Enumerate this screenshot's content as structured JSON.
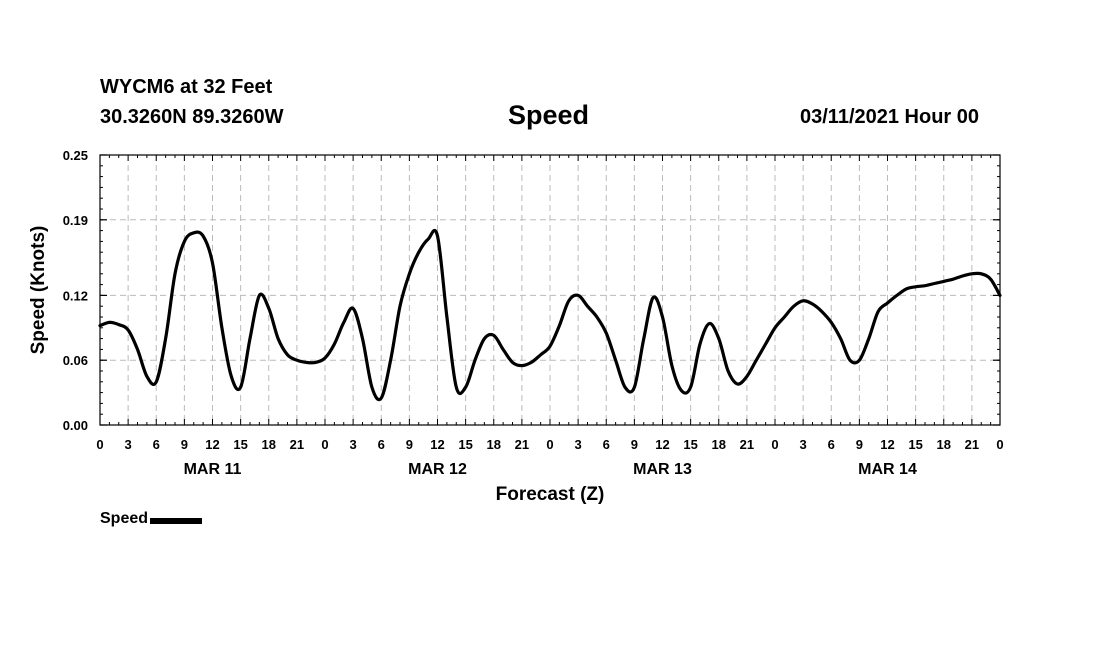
{
  "header": {
    "station": "WYCM6 at 32 Feet",
    "coords": "30.3260N 89.3260W",
    "title": "Speed",
    "issued": "03/11/2021 Hour 00"
  },
  "legend": {
    "label": "Speed"
  },
  "chart_data": {
    "type": "line",
    "title": "Speed",
    "xlabel": "Forecast (Z)",
    "ylabel": "Speed (Knots)",
    "xlim": [
      0,
      96
    ],
    "ylim": [
      0,
      0.25
    ],
    "grid": true,
    "yticks": [
      0,
      0.06,
      0.12,
      0.19,
      0.25
    ],
    "ytick_labels": [
      "0.00",
      "0.06",
      "0.12",
      "0.19",
      "0.25"
    ],
    "xticks": [
      0,
      3,
      6,
      9,
      12,
      15,
      18,
      21,
      24,
      27,
      30,
      33,
      36,
      39,
      42,
      45,
      48,
      51,
      54,
      57,
      60,
      63,
      66,
      69,
      72,
      75,
      78,
      81,
      84,
      87,
      90,
      93,
      96
    ],
    "xtick_labels": [
      "0",
      "3",
      "6",
      "9",
      "12",
      "15",
      "18",
      "21",
      "0",
      "3",
      "6",
      "9",
      "12",
      "15",
      "18",
      "21",
      "0",
      "3",
      "6",
      "9",
      "12",
      "15",
      "18",
      "21",
      "0",
      "3",
      "6",
      "9",
      "12",
      "15",
      "18",
      "21",
      "0"
    ],
    "day_labels": [
      {
        "label": "MAR 11",
        "x": 12
      },
      {
        "label": "MAR 12",
        "x": 36
      },
      {
        "label": "MAR 13",
        "x": 60
      },
      {
        "label": "MAR 14",
        "x": 84
      }
    ],
    "series": [
      {
        "name": "Speed",
        "color": "#000000",
        "x": [
          0,
          1,
          2,
          3,
          4,
          5,
          6,
          7,
          8,
          9,
          10,
          11,
          12,
          13,
          14,
          15,
          16,
          17,
          18,
          19,
          20,
          21,
          22,
          23,
          24,
          25,
          26,
          27,
          28,
          29,
          30,
          31,
          32,
          33,
          34,
          35,
          36,
          37,
          38,
          39,
          40,
          41,
          42,
          43,
          44,
          45,
          46,
          47,
          48,
          49,
          50,
          51,
          52,
          53,
          54,
          55,
          56,
          57,
          58,
          59,
          60,
          61,
          62,
          63,
          64,
          65,
          66,
          67,
          68,
          69,
          70,
          71,
          72,
          73,
          74,
          75,
          76,
          77,
          78,
          79,
          80,
          81,
          82,
          83,
          84,
          85,
          86,
          87,
          88,
          89,
          90,
          91,
          92,
          93,
          94,
          95,
          96
        ],
        "y": [
          0.092,
          0.095,
          0.093,
          0.088,
          0.07,
          0.045,
          0.04,
          0.08,
          0.14,
          0.17,
          0.178,
          0.175,
          0.15,
          0.09,
          0.045,
          0.035,
          0.08,
          0.12,
          0.108,
          0.08,
          0.065,
          0.06,
          0.058,
          0.058,
          0.062,
          0.075,
          0.095,
          0.108,
          0.08,
          0.035,
          0.025,
          0.06,
          0.11,
          0.14,
          0.16,
          0.172,
          0.175,
          0.1,
          0.035,
          0.035,
          0.06,
          0.08,
          0.083,
          0.07,
          0.058,
          0.055,
          0.058,
          0.065,
          0.073,
          0.092,
          0.115,
          0.12,
          0.11,
          0.1,
          0.085,
          0.06,
          0.035,
          0.035,
          0.08,
          0.118,
          0.1,
          0.055,
          0.032,
          0.035,
          0.075,
          0.094,
          0.08,
          0.05,
          0.038,
          0.045,
          0.06,
          0.075,
          0.09,
          0.1,
          0.11,
          0.115,
          0.112,
          0.105,
          0.095,
          0.08,
          0.06,
          0.06,
          0.08,
          0.105,
          0.113,
          0.12,
          0.126,
          0.128,
          0.129,
          0.131,
          0.133,
          0.135,
          0.138,
          0.14,
          0.14,
          0.135,
          0.12
        ]
      }
    ]
  }
}
